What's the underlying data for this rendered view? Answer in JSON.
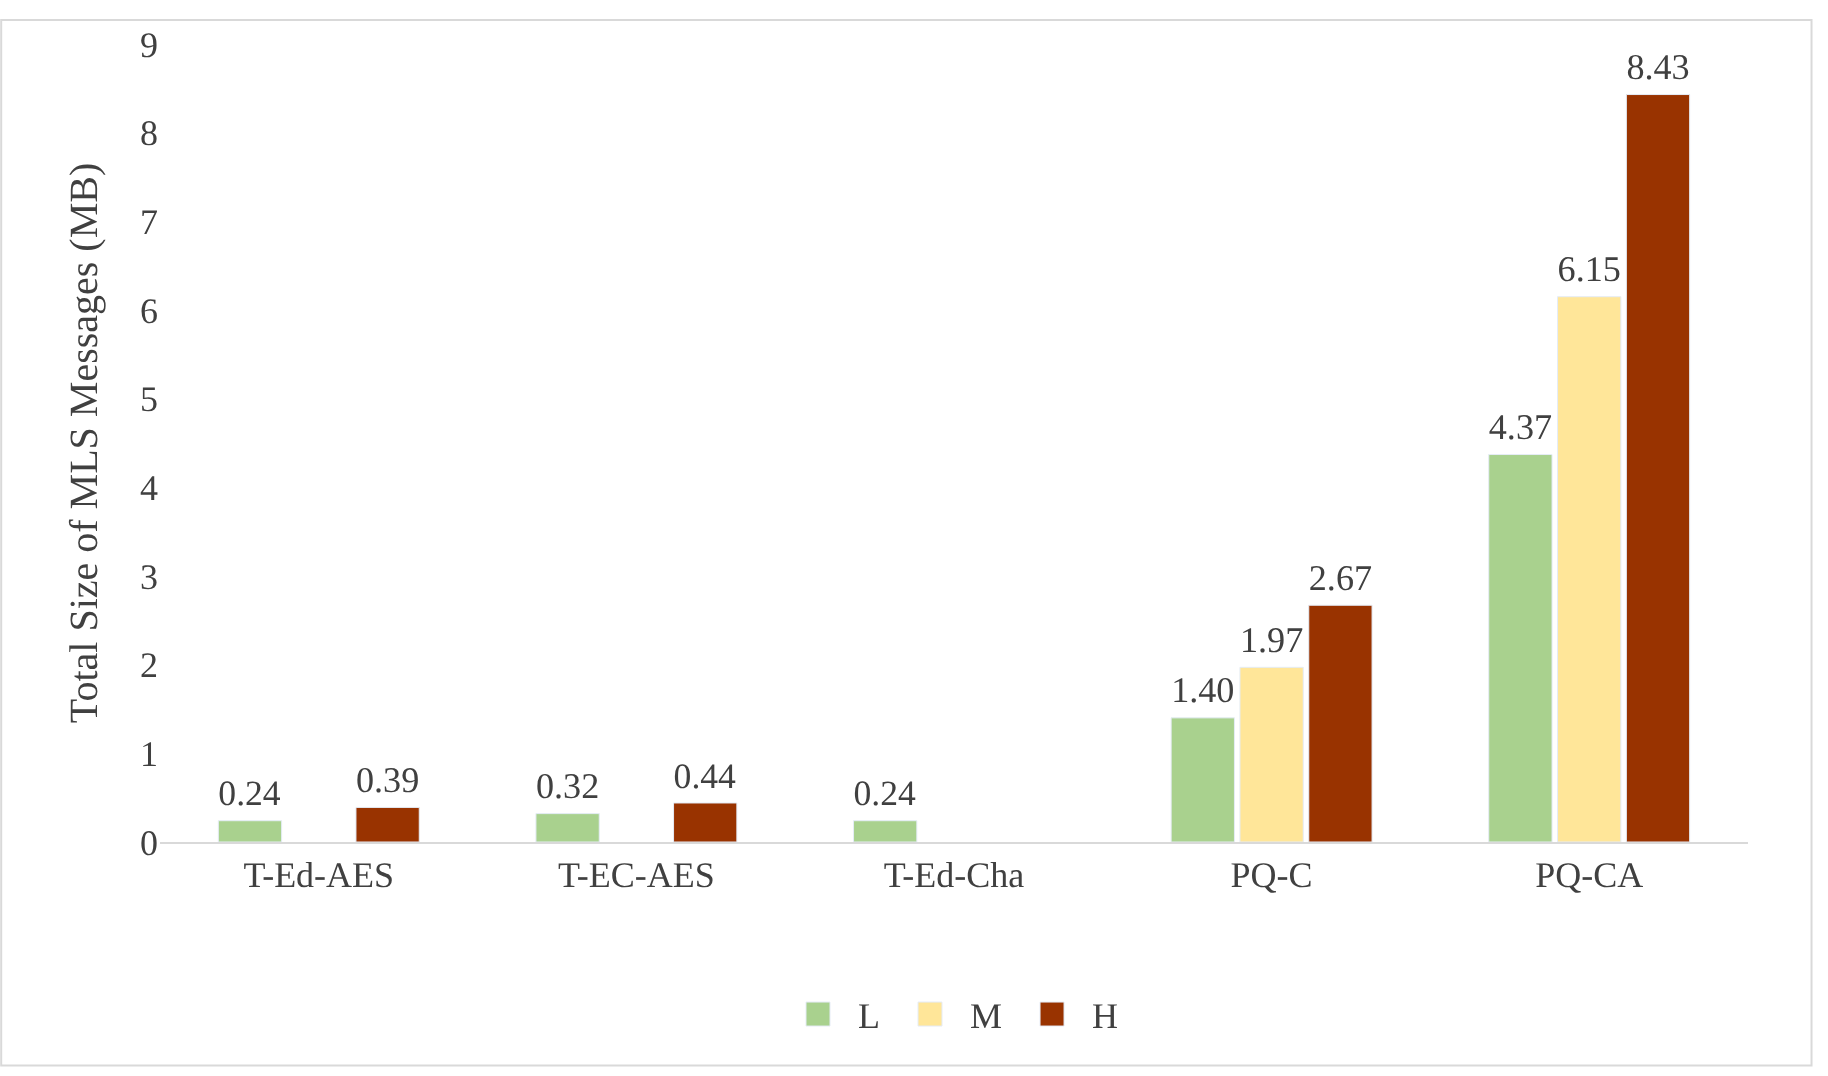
{
  "chart_data": {
    "type": "bar",
    "ylabel": "Total Size of MLS Messages (MB)",
    "categories": [
      "T-Ed-AES",
      "T-EC-AES",
      "T-Ed-Cha",
      "PQ-C",
      "PQ-CA"
    ],
    "series": [
      {
        "name": "L",
        "color": "#a9d18e",
        "values": [
          0.24,
          0.32,
          0.24,
          1.4,
          4.37
        ],
        "value_labels": [
          "0.24",
          "0.32",
          "0.24",
          "1.40",
          "4.37"
        ]
      },
      {
        "name": "M",
        "color": "#ffe699",
        "values": [
          null,
          null,
          null,
          1.97,
          6.15
        ],
        "value_labels": [
          null,
          null,
          null,
          "1.97",
          "6.15"
        ]
      },
      {
        "name": "H",
        "color": "#993300",
        "values": [
          0.39,
          0.44,
          null,
          2.67,
          8.43
        ],
        "value_labels": [
          "0.39",
          "0.44",
          null,
          "2.67",
          "8.43"
        ]
      }
    ],
    "ylim": [
      0,
      9
    ],
    "yticks": [
      0,
      1,
      2,
      3,
      4,
      5,
      6,
      7,
      8,
      9
    ],
    "grid": false,
    "legend": "bottom"
  }
}
